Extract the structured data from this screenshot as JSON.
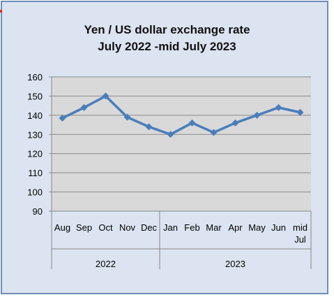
{
  "chart_data": {
    "type": "line",
    "title": "Yen / US dollar exchange rate",
    "subtitle": "July 2022 -mid July 2023",
    "xlabel": "",
    "ylabel": "",
    "ylim": [
      90,
      160
    ],
    "yticks": [
      "90",
      "100",
      "110",
      "120",
      "130",
      "140",
      "150",
      "160"
    ],
    "grid": true,
    "categories": [
      "Aug",
      "Sep",
      "Oct",
      "Nov",
      "Dec",
      "Jan",
      "Feb",
      "Mar",
      "Apr",
      "May",
      "Jun",
      "mid Jul"
    ],
    "category_lines": [
      [
        "Aug"
      ],
      [
        "Sep"
      ],
      [
        "Oct"
      ],
      [
        "Nov"
      ],
      [
        "Dec"
      ],
      [
        "Jan"
      ],
      [
        "Feb"
      ],
      [
        "Mar"
      ],
      [
        "Apr"
      ],
      [
        "May"
      ],
      [
        "Jun"
      ],
      [
        "mid",
        "Jul"
      ]
    ],
    "groups": [
      {
        "label": "2022",
        "count": 5
      },
      {
        "label": "2023",
        "count": 7
      }
    ],
    "series": [
      {
        "values": [
          138.5,
          144,
          150,
          139,
          134,
          130,
          136,
          131,
          136,
          140,
          144,
          141.5
        ],
        "color": "#4a7ebb"
      }
    ],
    "colors": {
      "line": "#4a7ebb",
      "plot_bg": "#d9d9d9",
      "grid": "#8c8c8c"
    }
  }
}
